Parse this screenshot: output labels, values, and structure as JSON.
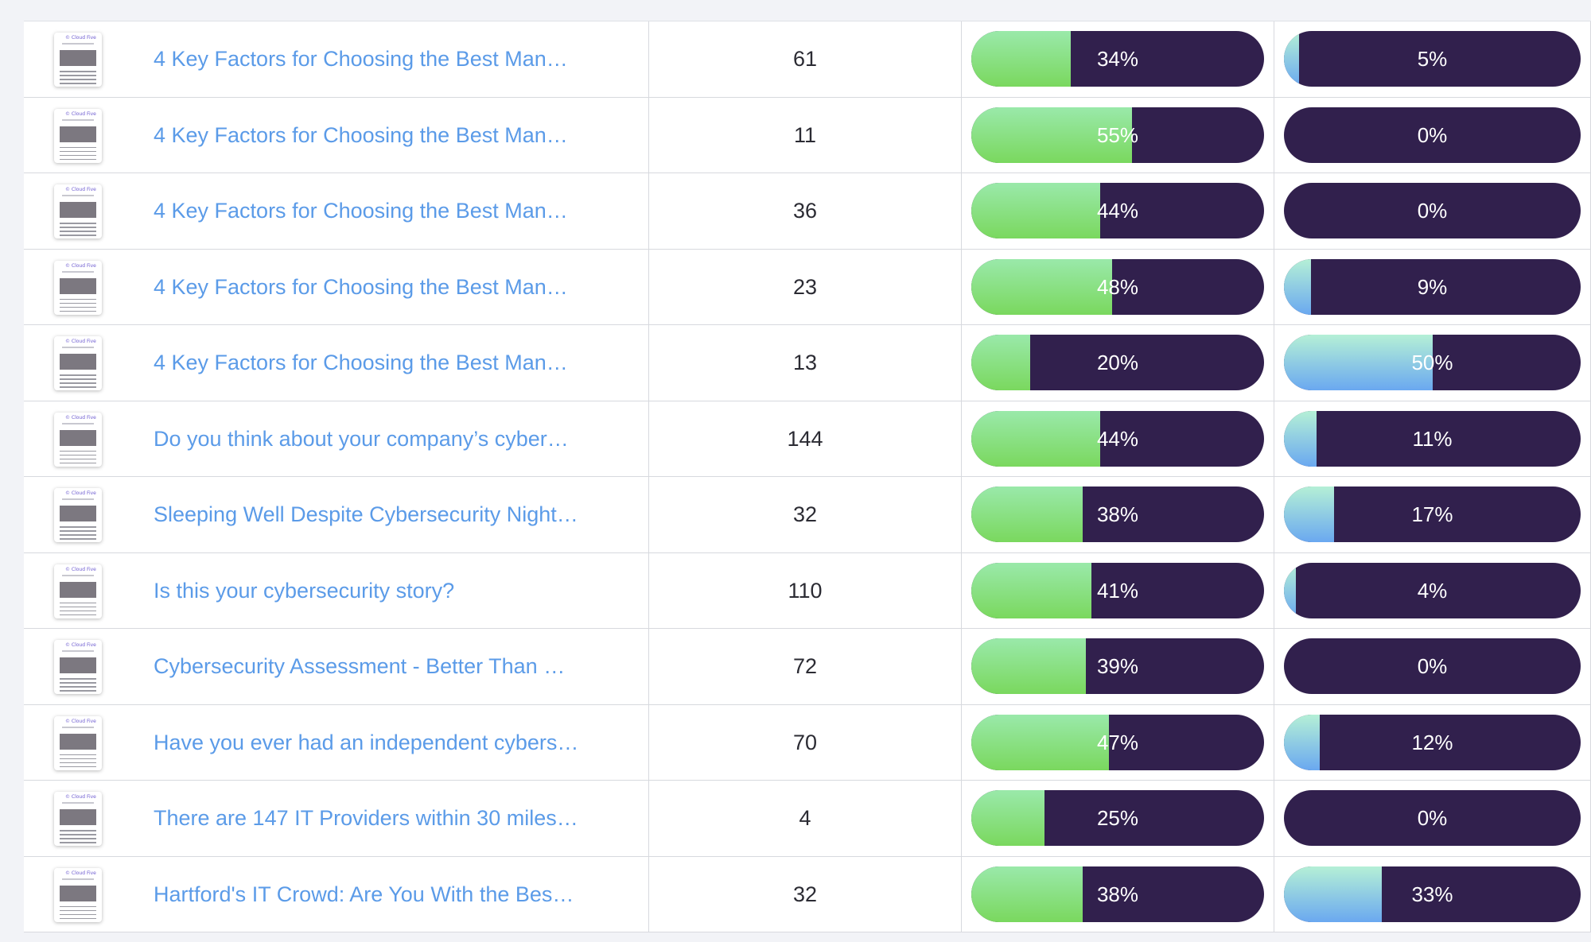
{
  "colors": {
    "track": "#31204d",
    "green_fill": "#7ad85e",
    "blue_fill": "#6aa8f0",
    "link": "#5b9be8"
  },
  "thumbnail": {
    "logo_text": "© Cloud Five"
  },
  "rows": [
    {
      "title": "4 Key Factors for Choosing the Best Man…",
      "count": "61",
      "pct1_label": "34%",
      "pct1": 34,
      "pct2_label": "5%",
      "pct2": 5
    },
    {
      "title": "4 Key Factors for Choosing the Best Man…",
      "count": "11",
      "pct1_label": "55%",
      "pct1": 55,
      "pct2_label": "0%",
      "pct2": 0
    },
    {
      "title": "4 Key Factors for Choosing the Best Man…",
      "count": "36",
      "pct1_label": "44%",
      "pct1": 44,
      "pct2_label": "0%",
      "pct2": 0
    },
    {
      "title": "4 Key Factors for Choosing the Best Man…",
      "count": "23",
      "pct1_label": "48%",
      "pct1": 48,
      "pct2_label": "9%",
      "pct2": 9
    },
    {
      "title": "4 Key Factors for Choosing the Best Man…",
      "count": "13",
      "pct1_label": "20%",
      "pct1": 20,
      "pct2_label": "50%",
      "pct2": 50
    },
    {
      "title": "Do you think about your company’s cyber…",
      "count": "144",
      "pct1_label": "44%",
      "pct1": 44,
      "pct2_label": "11%",
      "pct2": 11
    },
    {
      "title": "Sleeping Well Despite Cybersecurity Night…",
      "count": "32",
      "pct1_label": "38%",
      "pct1": 38,
      "pct2_label": "17%",
      "pct2": 17
    },
    {
      "title": "Is this your cybersecurity story?",
      "count": "110",
      "pct1_label": "41%",
      "pct1": 41,
      "pct2_label": "4%",
      "pct2": 4
    },
    {
      "title": "Cybersecurity Assessment - Better Than …",
      "count": "72",
      "pct1_label": "39%",
      "pct1": 39,
      "pct2_label": "0%",
      "pct2": 0
    },
    {
      "title": "Have you ever had an independent cybers…",
      "count": "70",
      "pct1_label": "47%",
      "pct1": 47,
      "pct2_label": "12%",
      "pct2": 12
    },
    {
      "title": "There are 147 IT Providers within 30 miles…",
      "count": "4",
      "pct1_label": "25%",
      "pct1": 25,
      "pct2_label": "0%",
      "pct2": 0
    },
    {
      "title": "Hartford's IT Crowd: Are You With the Bes…",
      "count": "32",
      "pct1_label": "38%",
      "pct1": 38,
      "pct2_label": "33%",
      "pct2": 33
    }
  ]
}
